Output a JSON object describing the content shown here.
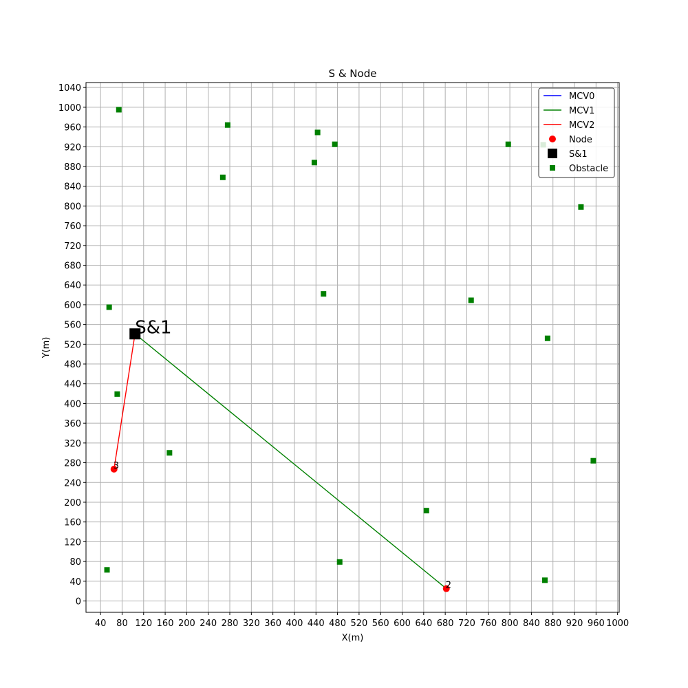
{
  "chart_data": {
    "type": "scatter",
    "title": "S & Node",
    "xlabel": "X(m)",
    "ylabel": "Y(m)",
    "xlim": [
      13,
      1003
    ],
    "ylim": [
      -23,
      1050
    ],
    "xticks": [
      40,
      80,
      120,
      160,
      200,
      240,
      280,
      320,
      360,
      400,
      440,
      480,
      520,
      560,
      600,
      640,
      680,
      720,
      760,
      800,
      840,
      880,
      920,
      960,
      1000
    ],
    "yticks": [
      0,
      40,
      80,
      120,
      160,
      200,
      240,
      280,
      320,
      360,
      400,
      440,
      480,
      520,
      560,
      600,
      640,
      680,
      720,
      760,
      800,
      840,
      880,
      920,
      960,
      1000,
      1040
    ],
    "grid": true,
    "legend_position": "top-right",
    "colors": {
      "mcv0": "#0000ff",
      "mcv1": "#008000",
      "mcv2": "#ff0000",
      "node": "#ff0000",
      "station": "#000000",
      "obstacle": "#008000",
      "grid": "#b0b0b0"
    },
    "legend": [
      {
        "label": "MCV0",
        "kind": "line",
        "color": "#0000ff"
      },
      {
        "label": "MCV1",
        "kind": "line",
        "color": "#008000"
      },
      {
        "label": "MCV2",
        "kind": "line",
        "color": "#ff0000"
      },
      {
        "label": "Node",
        "kind": "circle",
        "color": "#ff0000"
      },
      {
        "label": "S&1",
        "kind": "square-big",
        "color": "#000000"
      },
      {
        "label": "Obstacle",
        "kind": "square",
        "color": "#008000"
      }
    ],
    "station": {
      "label": "S&1",
      "x": 104,
      "y": 541
    },
    "nodes": [
      {
        "label": "2",
        "x": 682,
        "y": 25
      },
      {
        "label": "3",
        "x": 65,
        "y": 267
      }
    ],
    "routes": [
      {
        "name": "MCV1",
        "color": "#008000",
        "points": [
          [
            104,
            541
          ],
          [
            682,
            25
          ]
        ]
      },
      {
        "name": "MCV2",
        "color": "#ff0000",
        "points": [
          [
            104,
            541
          ],
          [
            65,
            267
          ]
        ]
      }
    ],
    "obstacles": [
      [
        74,
        995
      ],
      [
        276,
        964
      ],
      [
        443,
        949
      ],
      [
        475,
        925
      ],
      [
        437,
        888
      ],
      [
        267,
        858
      ],
      [
        797,
        925
      ],
      [
        862,
        924
      ],
      [
        932,
        798
      ],
      [
        56,
        595
      ],
      [
        454,
        622
      ],
      [
        728,
        609
      ],
      [
        870,
        532
      ],
      [
        71,
        419
      ],
      [
        168,
        300
      ],
      [
        955,
        284
      ],
      [
        645,
        183
      ],
      [
        484,
        79
      ],
      [
        52,
        63
      ],
      [
        865,
        42
      ]
    ]
  }
}
